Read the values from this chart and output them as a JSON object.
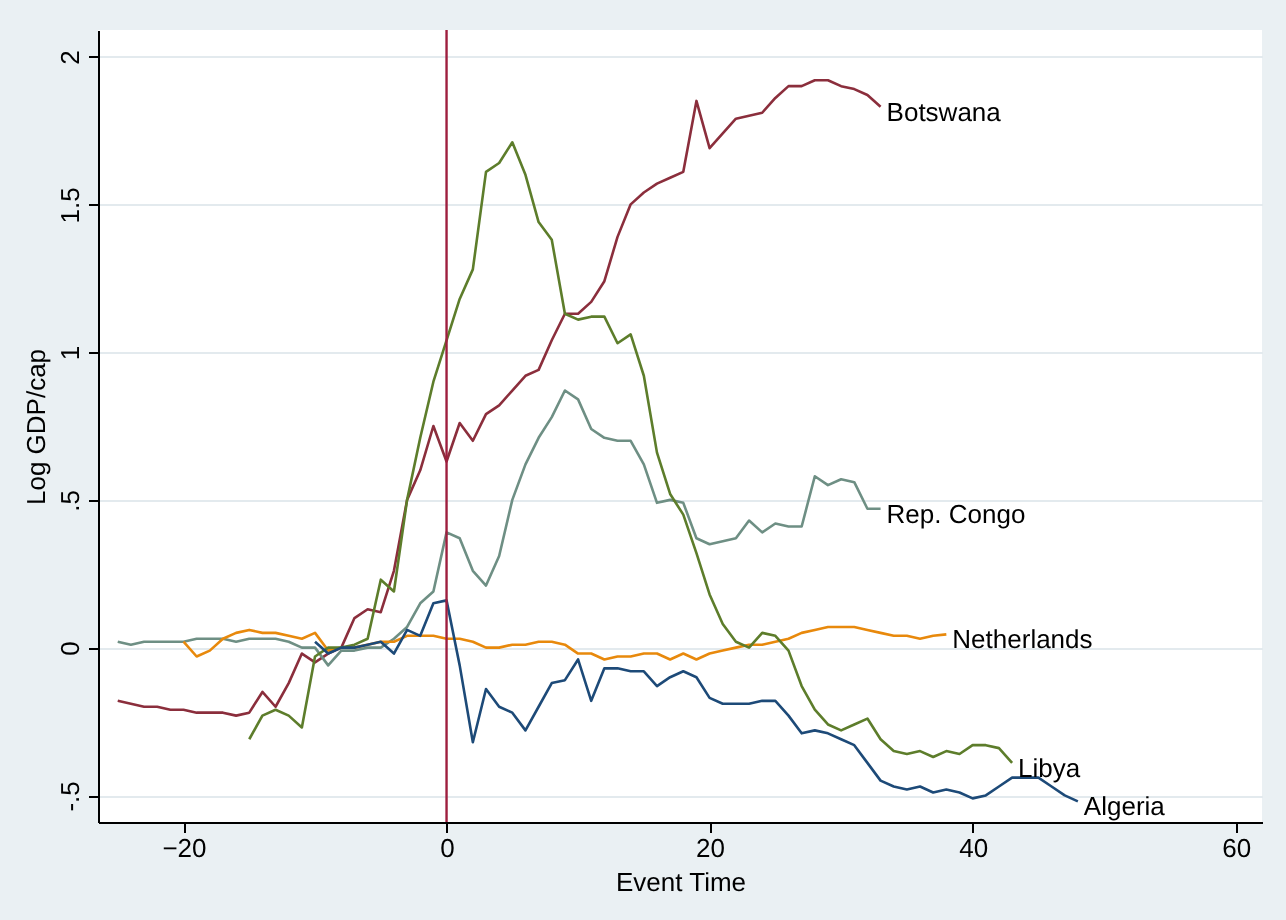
{
  "chart_data": {
    "type": "line",
    "xlabel": "Event Time",
    "ylabel": "Log GDP/cap",
    "xlim": [
      -26.5,
      62
    ],
    "xticks": [
      {
        "value": -20,
        "label": "−20"
      },
      0,
      20,
      40,
      60
    ],
    "ylim": [
      -0.59,
      2.09
    ],
    "yticks": [
      {
        "value": -0.5,
        "label": "-.5"
      },
      0,
      {
        "value": 0.5,
        "label": ".5"
      },
      1,
      1.5,
      2
    ],
    "grid": "y",
    "line_style": "solid",
    "marker": "none",
    "ref_lines": [
      {
        "axis": "x",
        "value": 0,
        "color": "#9e1f3f"
      }
    ],
    "series": [
      {
        "name": "Botswana",
        "color": "#8b2e3c",
        "x": [
          -25,
          -24,
          -23,
          -22,
          -21,
          -20,
          -19,
          -18,
          -17,
          -16,
          -15,
          -14,
          -13,
          -12,
          -11,
          -10,
          -9,
          -8,
          -7,
          -6,
          -5,
          -4,
          -3,
          -2,
          -1,
          0,
          1,
          2,
          3,
          4,
          5,
          6,
          7,
          8,
          9,
          10,
          11,
          12,
          13,
          14,
          15,
          16,
          17,
          18,
          19,
          20,
          21,
          22,
          23,
          24,
          25,
          26,
          27,
          28,
          29,
          30,
          31,
          32,
          33
        ],
        "values": [
          -0.18,
          -0.19,
          -0.2,
          -0.2,
          -0.21,
          -0.21,
          -0.22,
          -0.22,
          -0.22,
          -0.23,
          -0.22,
          -0.15,
          -0.2,
          -0.12,
          -0.02,
          -0.05,
          -0.02,
          0.0,
          0.1,
          0.13,
          0.12,
          0.26,
          0.5,
          0.6,
          0.75,
          0.63,
          0.76,
          0.7,
          0.79,
          0.82,
          0.87,
          0.92,
          0.94,
          1.04,
          1.13,
          1.13,
          1.17,
          1.24,
          1.39,
          1.5,
          1.54,
          1.57,
          1.59,
          1.61,
          1.85,
          1.69,
          1.74,
          1.79,
          1.8,
          1.81,
          1.86,
          1.9,
          1.9,
          1.92,
          1.92,
          1.9,
          1.89,
          1.87,
          1.83
        ]
      },
      {
        "name": "Rep. Congo",
        "color": "#6e8f84",
        "x": [
          -25,
          -24,
          -23,
          -22,
          -21,
          -20,
          -19,
          -18,
          -17,
          -16,
          -15,
          -14,
          -13,
          -12,
          -11,
          -10,
          -9,
          -8,
          -7,
          -6,
          -5,
          -4,
          -3,
          -2,
          -1,
          0,
          1,
          2,
          3,
          4,
          5,
          6,
          7,
          8,
          9,
          10,
          11,
          12,
          13,
          14,
          15,
          16,
          17,
          18,
          19,
          20,
          21,
          22,
          23,
          24,
          25,
          26,
          27,
          28,
          29,
          30,
          31,
          32,
          33
        ],
        "values": [
          0.02,
          0.01,
          0.02,
          0.02,
          0.02,
          0.02,
          0.03,
          0.03,
          0.03,
          0.02,
          0.03,
          0.03,
          0.03,
          0.02,
          0.0,
          0.0,
          -0.06,
          -0.01,
          -0.01,
          0.0,
          0.0,
          0.03,
          0.07,
          0.15,
          0.19,
          0.39,
          0.37,
          0.26,
          0.21,
          0.31,
          0.5,
          0.62,
          0.71,
          0.78,
          0.87,
          0.84,
          0.74,
          0.71,
          0.7,
          0.7,
          0.62,
          0.49,
          0.5,
          0.49,
          0.37,
          0.35,
          0.36,
          0.37,
          0.43,
          0.39,
          0.42,
          0.41,
          0.41,
          0.58,
          0.55,
          0.57,
          0.56,
          0.47,
          0.47
        ]
      },
      {
        "name": "Netherlands",
        "color": "#e8890c",
        "x": [
          -20,
          -19,
          -18,
          -17,
          -16,
          -15,
          -14,
          -13,
          -12,
          -11,
          -10,
          -9,
          -8,
          -7,
          -6,
          -5,
          -4,
          -3,
          -2,
          -1,
          0,
          1,
          2,
          3,
          4,
          5,
          6,
          7,
          8,
          9,
          10,
          11,
          12,
          13,
          14,
          15,
          16,
          17,
          18,
          19,
          20,
          21,
          22,
          23,
          24,
          25,
          26,
          27,
          28,
          29,
          30,
          31,
          32,
          33,
          34,
          35,
          36,
          37,
          38
        ],
        "values": [
          0.02,
          -0.03,
          -0.01,
          0.03,
          0.05,
          0.06,
          0.05,
          0.05,
          0.04,
          0.03,
          0.05,
          -0.01,
          0.0,
          0.0,
          0.01,
          0.02,
          0.02,
          0.04,
          0.04,
          0.04,
          0.03,
          0.03,
          0.02,
          0.0,
          0.0,
          0.01,
          0.01,
          0.02,
          0.02,
          0.01,
          -0.02,
          -0.02,
          -0.04,
          -0.03,
          -0.03,
          -0.02,
          -0.02,
          -0.04,
          -0.02,
          -0.04,
          -0.02,
          -0.01,
          0.0,
          0.01,
          0.01,
          0.02,
          0.03,
          0.05,
          0.06,
          0.07,
          0.07,
          0.07,
          0.06,
          0.05,
          0.04,
          0.04,
          0.03,
          0.04,
          0.045
        ]
      },
      {
        "name": "Libya",
        "color": "#5d7d2b",
        "x": [
          -15,
          -14,
          -13,
          -12,
          -11,
          -10,
          -9,
          -8,
          -7,
          -6,
          -5,
          -4,
          -3,
          -2,
          -1,
          0,
          1,
          2,
          3,
          4,
          5,
          6,
          7,
          8,
          9,
          10,
          11,
          12,
          13,
          14,
          15,
          16,
          17,
          18,
          19,
          20,
          21,
          22,
          23,
          24,
          25,
          26,
          27,
          28,
          29,
          30,
          31,
          32,
          33,
          34,
          35,
          36,
          37,
          38,
          39,
          40,
          41,
          42,
          43
        ],
        "values": [
          -0.31,
          -0.23,
          -0.21,
          -0.23,
          -0.27,
          -0.03,
          0.0,
          0.0,
          0.01,
          0.03,
          0.23,
          0.19,
          0.5,
          0.71,
          0.9,
          1.04,
          1.18,
          1.28,
          1.61,
          1.64,
          1.71,
          1.6,
          1.44,
          1.38,
          1.13,
          1.11,
          1.12,
          1.12,
          1.03,
          1.06,
          0.92,
          0.66,
          0.52,
          0.45,
          0.32,
          0.18,
          0.08,
          0.02,
          0.0,
          0.05,
          0.04,
          -0.01,
          -0.13,
          -0.21,
          -0.26,
          -0.28,
          -0.26,
          -0.24,
          -0.31,
          -0.35,
          -0.36,
          -0.35,
          -0.37,
          -0.35,
          -0.36,
          -0.33,
          -0.33,
          -0.34,
          -0.39
        ]
      },
      {
        "name": "Algeria",
        "color": "#1d4a78",
        "x": [
          -10,
          -9,
          -8,
          -7,
          -6,
          -5,
          -4,
          -3,
          -2,
          -1,
          0,
          1,
          2,
          3,
          4,
          5,
          6,
          7,
          8,
          9,
          10,
          11,
          12,
          13,
          14,
          15,
          16,
          17,
          18,
          19,
          20,
          21,
          22,
          23,
          24,
          25,
          26,
          27,
          28,
          29,
          30,
          31,
          32,
          33,
          34,
          35,
          36,
          37,
          38,
          39,
          40,
          41,
          42,
          43,
          44,
          45,
          46,
          47,
          48
        ],
        "values": [
          0.02,
          -0.02,
          0.0,
          0.0,
          0.01,
          0.02,
          -0.02,
          0.06,
          0.04,
          0.15,
          0.16,
          -0.06,
          -0.32,
          -0.14,
          -0.2,
          -0.22,
          -0.28,
          -0.2,
          -0.12,
          -0.11,
          -0.04,
          -0.18,
          -0.07,
          -0.07,
          -0.08,
          -0.08,
          -0.13,
          -0.1,
          -0.08,
          -0.1,
          -0.17,
          -0.19,
          -0.19,
          -0.19,
          -0.18,
          -0.18,
          -0.23,
          -0.29,
          -0.28,
          -0.29,
          -0.31,
          -0.33,
          -0.39,
          -0.45,
          -0.47,
          -0.48,
          -0.47,
          -0.49,
          -0.48,
          -0.49,
          -0.51,
          -0.5,
          -0.47,
          -0.44,
          -0.44,
          -0.44,
          -0.47,
          -0.5,
          -0.52
        ]
      }
    ]
  }
}
